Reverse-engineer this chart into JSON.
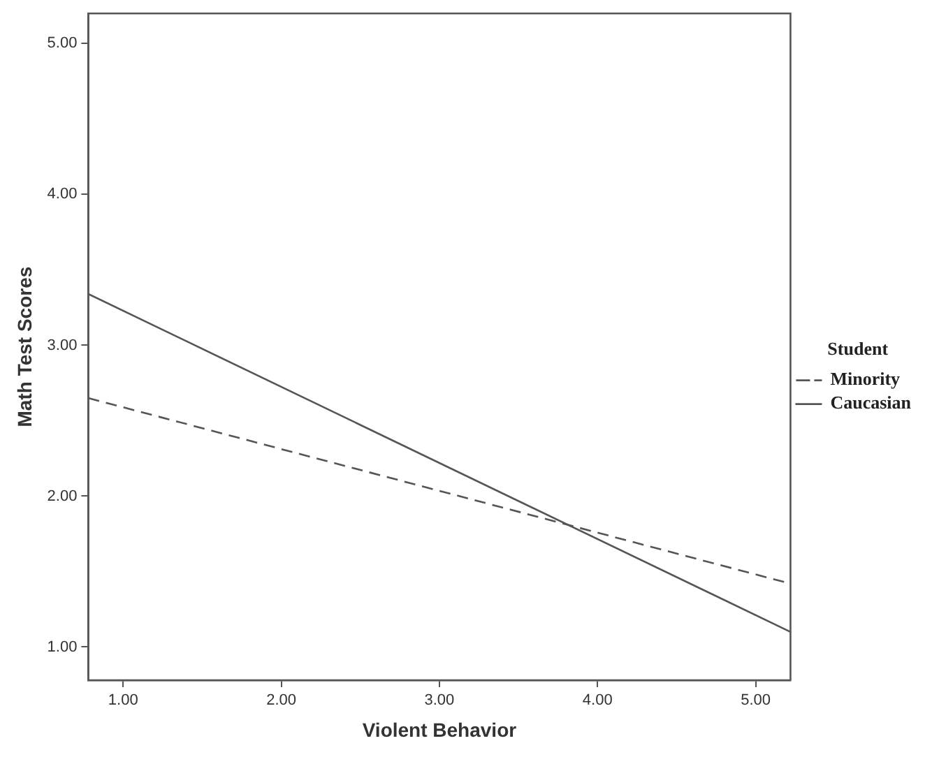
{
  "chart_data": {
    "type": "line",
    "xlabel": "Violent Behavior",
    "ylabel": "Math Test Scores",
    "legend_title": "Student",
    "legend": "right",
    "x": [
      0.78,
      5.22
    ],
    "series": [
      {
        "name": "Minority",
        "color": "#555555",
        "values": [
          2.65,
          1.42
        ],
        "line_style": "dashed"
      },
      {
        "name": "Caucasian",
        "color": "#555555",
        "values": [
          3.34,
          1.1
        ],
        "line_style": "solid"
      }
    ],
    "xlim": [
      0.78,
      5.22
    ],
    "xticks": [
      {
        "value": 1,
        "label": "1.00"
      },
      {
        "value": 2,
        "label": "2.00"
      },
      {
        "value": 3,
        "label": "3.00"
      },
      {
        "value": 4,
        "label": "4.00"
      },
      {
        "value": 5,
        "label": "5.00"
      }
    ],
    "ylim": [
      0.78,
      5.2
    ],
    "yticks": [
      {
        "value": 1,
        "label": "1.00"
      },
      {
        "value": 2,
        "label": "2.00"
      },
      {
        "value": 3,
        "label": "3.00"
      },
      {
        "value": 4,
        "label": "4.00"
      },
      {
        "value": 5,
        "label": "5.00"
      }
    ],
    "grid": false,
    "marker": "none"
  }
}
